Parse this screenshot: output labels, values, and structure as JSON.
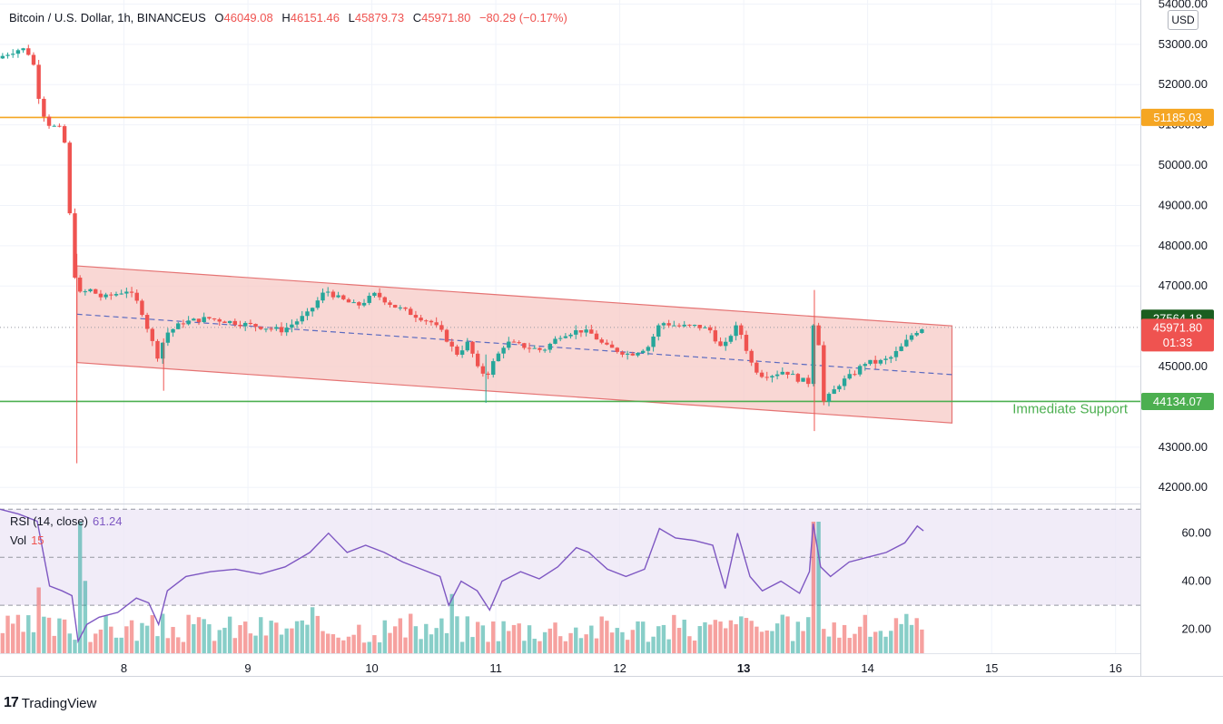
{
  "header": {
    "symbol": "Bitcoin / U.S. Dollar, 1h, BINANCEUS",
    "o_label": "O",
    "o_value": "46049.08",
    "h_label": "H",
    "h_value": "46151.46",
    "l_label": "L",
    "l_value": "45879.73",
    "c_label": "C",
    "c_value": "45971.80",
    "change": "−80.29 (−0.17%)"
  },
  "currency_button": "USD",
  "rsi_legend": {
    "label": "RSI (14, close)",
    "value": "61.24"
  },
  "vol_legend": {
    "label": "Vol",
    "value": "15"
  },
  "branding": "TradingView",
  "colors": {
    "up": "#26a69a",
    "down": "#ef5350",
    "resistance": "#f5a623",
    "support": "#4caf50",
    "channel_fill": "#f7c9c6",
    "channel_line": "#e57373",
    "midline": "#5c6bc0",
    "rsi": "#7e57c2",
    "rsi_band": "#ede7f6"
  },
  "chart_data": {
    "type": "candlestick",
    "timeframe": "1h",
    "ylim": [
      41600,
      54100
    ],
    "y_ticks": [
      "42000.00",
      "43000.00",
      "45000.00",
      "47000.00",
      "48000.00",
      "49000.00",
      "50000.00",
      "51000.00",
      "52000.00",
      "53000.00",
      "54000.00"
    ],
    "x_ticks": [
      "8",
      "9",
      "10",
      "11",
      "12",
      "13",
      "14",
      "15",
      "16"
    ],
    "x_tick_positions_day": [
      8,
      9,
      10,
      11,
      12,
      13,
      14,
      15,
      16
    ],
    "xlim_day": [
      7.0,
      16.2
    ],
    "horizontal_lines": [
      {
        "name": "resistance",
        "value": 51185.03,
        "label": "51185.03",
        "color": "#f5a623"
      },
      {
        "name": "support",
        "value": 44134.07,
        "label": "44134.07",
        "color": "#4caf50",
        "annotation": "Immediate Support"
      }
    ],
    "price_tags": [
      {
        "label": "45971.80",
        "sub": "01:33",
        "value": 45971.8
      },
      {
        "label": "27564.18",
        "value": 46200
      }
    ],
    "channel": {
      "start_day": 7.62,
      "end_day": 14.68,
      "upper_start": 47500,
      "upper_end": 46010,
      "lower_start": 45100,
      "lower_end": 43600
    },
    "channel_midline": {
      "start_day": 7.62,
      "end_day": 14.68,
      "start": 46300,
      "end": 44800
    },
    "current_price_line": 45971.8,
    "keypoints": [
      [
        7.0,
        52650
      ],
      [
        7.1,
        52800
      ],
      [
        7.2,
        52900
      ],
      [
        7.28,
        52700
      ],
      [
        7.35,
        51400
      ],
      [
        7.42,
        51000
      ],
      [
        7.5,
        50900
      ],
      [
        7.56,
        50400
      ],
      [
        7.6,
        47600
      ],
      [
        7.66,
        46800
      ],
      [
        7.75,
        46900
      ],
      [
        7.85,
        46700
      ],
      [
        7.95,
        46800
      ],
      [
        8.05,
        46900
      ],
      [
        8.15,
        46500
      ],
      [
        8.25,
        45600
      ],
      [
        8.3,
        45200
      ],
      [
        8.35,
        45800
      ],
      [
        8.5,
        46100
      ],
      [
        8.7,
        46200
      ],
      [
        8.9,
        46100
      ],
      [
        9.1,
        46000
      ],
      [
        9.3,
        45900
      ],
      [
        9.5,
        46300
      ],
      [
        9.65,
        46900
      ],
      [
        9.75,
        46700
      ],
      [
        9.9,
        46500
      ],
      [
        10.05,
        46800
      ],
      [
        10.2,
        46500
      ],
      [
        10.35,
        46300
      ],
      [
        10.5,
        46100
      ],
      [
        10.6,
        45800
      ],
      [
        10.7,
        45300
      ],
      [
        10.8,
        45600
      ],
      [
        10.88,
        44900
      ],
      [
        10.95,
        44800
      ],
      [
        11.0,
        45100
      ],
      [
        11.1,
        45600
      ],
      [
        11.25,
        45500
      ],
      [
        11.4,
        45400
      ],
      [
        11.55,
        45800
      ],
      [
        11.7,
        45900
      ],
      [
        11.8,
        45800
      ],
      [
        11.9,
        45500
      ],
      [
        12.0,
        45400
      ],
      [
        12.1,
        45300
      ],
      [
        12.25,
        45500
      ],
      [
        12.35,
        46100
      ],
      [
        12.5,
        46000
      ],
      [
        12.65,
        46000
      ],
      [
        12.75,
        45900
      ],
      [
        12.85,
        45400
      ],
      [
        12.95,
        46000
      ],
      [
        13.0,
        45800
      ],
      [
        13.08,
        45100
      ],
      [
        13.15,
        44800
      ],
      [
        13.25,
        44800
      ],
      [
        13.35,
        44900
      ],
      [
        13.45,
        44700
      ],
      [
        13.55,
        44600
      ],
      [
        13.58,
        46100
      ],
      [
        13.62,
        45800
      ],
      [
        13.66,
        44100
      ],
      [
        13.72,
        44300
      ],
      [
        13.8,
        44600
      ],
      [
        13.9,
        44800
      ],
      [
        14.0,
        45100
      ],
      [
        14.1,
        45100
      ],
      [
        14.2,
        45200
      ],
      [
        14.3,
        45500
      ],
      [
        14.38,
        45800
      ],
      [
        14.45,
        45960
      ]
    ],
    "rsi": {
      "ylim": [
        10,
        72
      ],
      "y_ticks": [
        "20.00",
        "40.00",
        "60.00"
      ],
      "bands": [
        30,
        50,
        70
      ],
      "keypoints": [
        [
          7.0,
          70
        ],
        [
          7.15,
          68
        ],
        [
          7.3,
          65
        ],
        [
          7.4,
          38
        ],
        [
          7.5,
          36
        ],
        [
          7.58,
          34
        ],
        [
          7.63,
          15
        ],
        [
          7.7,
          22
        ],
        [
          7.8,
          25
        ],
        [
          7.95,
          27
        ],
        [
          8.1,
          33
        ],
        [
          8.2,
          31
        ],
        [
          8.28,
          22
        ],
        [
          8.35,
          36
        ],
        [
          8.5,
          42
        ],
        [
          8.7,
          44
        ],
        [
          8.9,
          45
        ],
        [
          9.1,
          43
        ],
        [
          9.3,
          46
        ],
        [
          9.5,
          52
        ],
        [
          9.65,
          60
        ],
        [
          9.8,
          52
        ],
        [
          9.95,
          55
        ],
        [
          10.1,
          52
        ],
        [
          10.25,
          48
        ],
        [
          10.4,
          45
        ],
        [
          10.55,
          42
        ],
        [
          10.62,
          30
        ],
        [
          10.72,
          40
        ],
        [
          10.85,
          36
        ],
        [
          10.95,
          28
        ],
        [
          11.05,
          40
        ],
        [
          11.2,
          44
        ],
        [
          11.35,
          41
        ],
        [
          11.5,
          46
        ],
        [
          11.65,
          54
        ],
        [
          11.75,
          52
        ],
        [
          11.9,
          45
        ],
        [
          12.05,
          42
        ],
        [
          12.2,
          45
        ],
        [
          12.32,
          62
        ],
        [
          12.45,
          58
        ],
        [
          12.6,
          57
        ],
        [
          12.75,
          55
        ],
        [
          12.85,
          37
        ],
        [
          12.95,
          60
        ],
        [
          13.05,
          42
        ],
        [
          13.15,
          36
        ],
        [
          13.3,
          40
        ],
        [
          13.45,
          35
        ],
        [
          13.53,
          44
        ],
        [
          13.56,
          64
        ],
        [
          13.62,
          46
        ],
        [
          13.7,
          42
        ],
        [
          13.85,
          48
        ],
        [
          14.0,
          50
        ],
        [
          14.15,
          52
        ],
        [
          14.3,
          56
        ],
        [
          14.4,
          63
        ],
        [
          14.45,
          61
        ]
      ]
    },
    "volume": {
      "note": "relative hourly bar heights (0-1) shown behind RSI",
      "spikes": [
        [
          7.3,
          0.5
        ],
        [
          7.63,
          1.0
        ],
        [
          7.68,
          0.55
        ],
        [
          8.3,
          0.3
        ],
        [
          9.5,
          0.35
        ],
        [
          10.62,
          0.45
        ],
        [
          13.56,
          1.0
        ],
        [
          12.95,
          0.28
        ]
      ]
    }
  }
}
